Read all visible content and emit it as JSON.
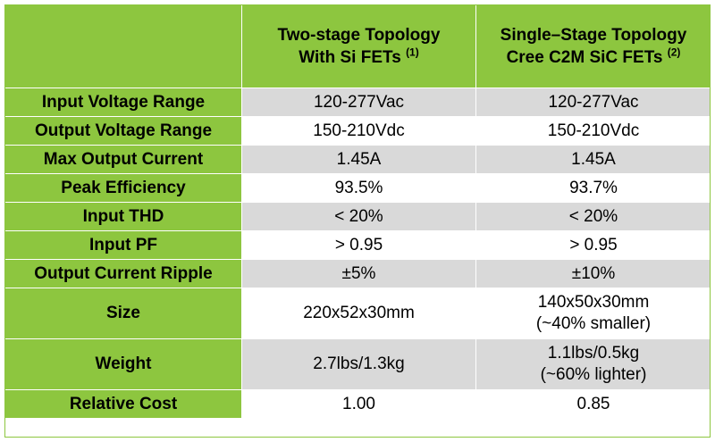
{
  "header": {
    "col1": {
      "line1": "Two-stage Topology",
      "line2": "With Si FETs",
      "ref": "(1)"
    },
    "col2": {
      "line1": "Single–Stage Topology",
      "line2": "Cree C2M SiC FETs",
      "ref": "(2)"
    }
  },
  "rows": [
    {
      "label": "Input Voltage Range",
      "v1": "120-277Vac",
      "v2": "120-277Vac"
    },
    {
      "label": "Output Voltage Range",
      "v1": "150-210Vdc",
      "v2": "150-210Vdc"
    },
    {
      "label": "Max Output Current",
      "v1": "1.45A",
      "v2": "1.45A"
    },
    {
      "label": "Peak Efficiency",
      "v1": "93.5%",
      "v2": "93.7%"
    },
    {
      "label": "Input THD",
      "v1": "< 20%",
      "v2": "< 20%"
    },
    {
      "label": "Input PF",
      "v1": "> 0.95",
      "v2": "> 0.95"
    },
    {
      "label": "Output Current Ripple",
      "v1": "±5%",
      "v2": "±10%"
    },
    {
      "label": "Size",
      "v1": "220x52x30mm",
      "v2_line1": "140x50x30mm",
      "v2_line2": "(~40% smaller)"
    },
    {
      "label": "Weight",
      "v1": "2.7lbs/1.3kg",
      "v2_line1": "1.1lbs/0.5kg",
      "v2_line2": "(~60% lighter)"
    },
    {
      "label": "Relative Cost",
      "v1": "1.00",
      "v2": "0.85"
    }
  ],
  "colors": {
    "accent_green": "#8dc63f",
    "row_gray": "#d9d9d9",
    "row_white": "#ffffff"
  }
}
